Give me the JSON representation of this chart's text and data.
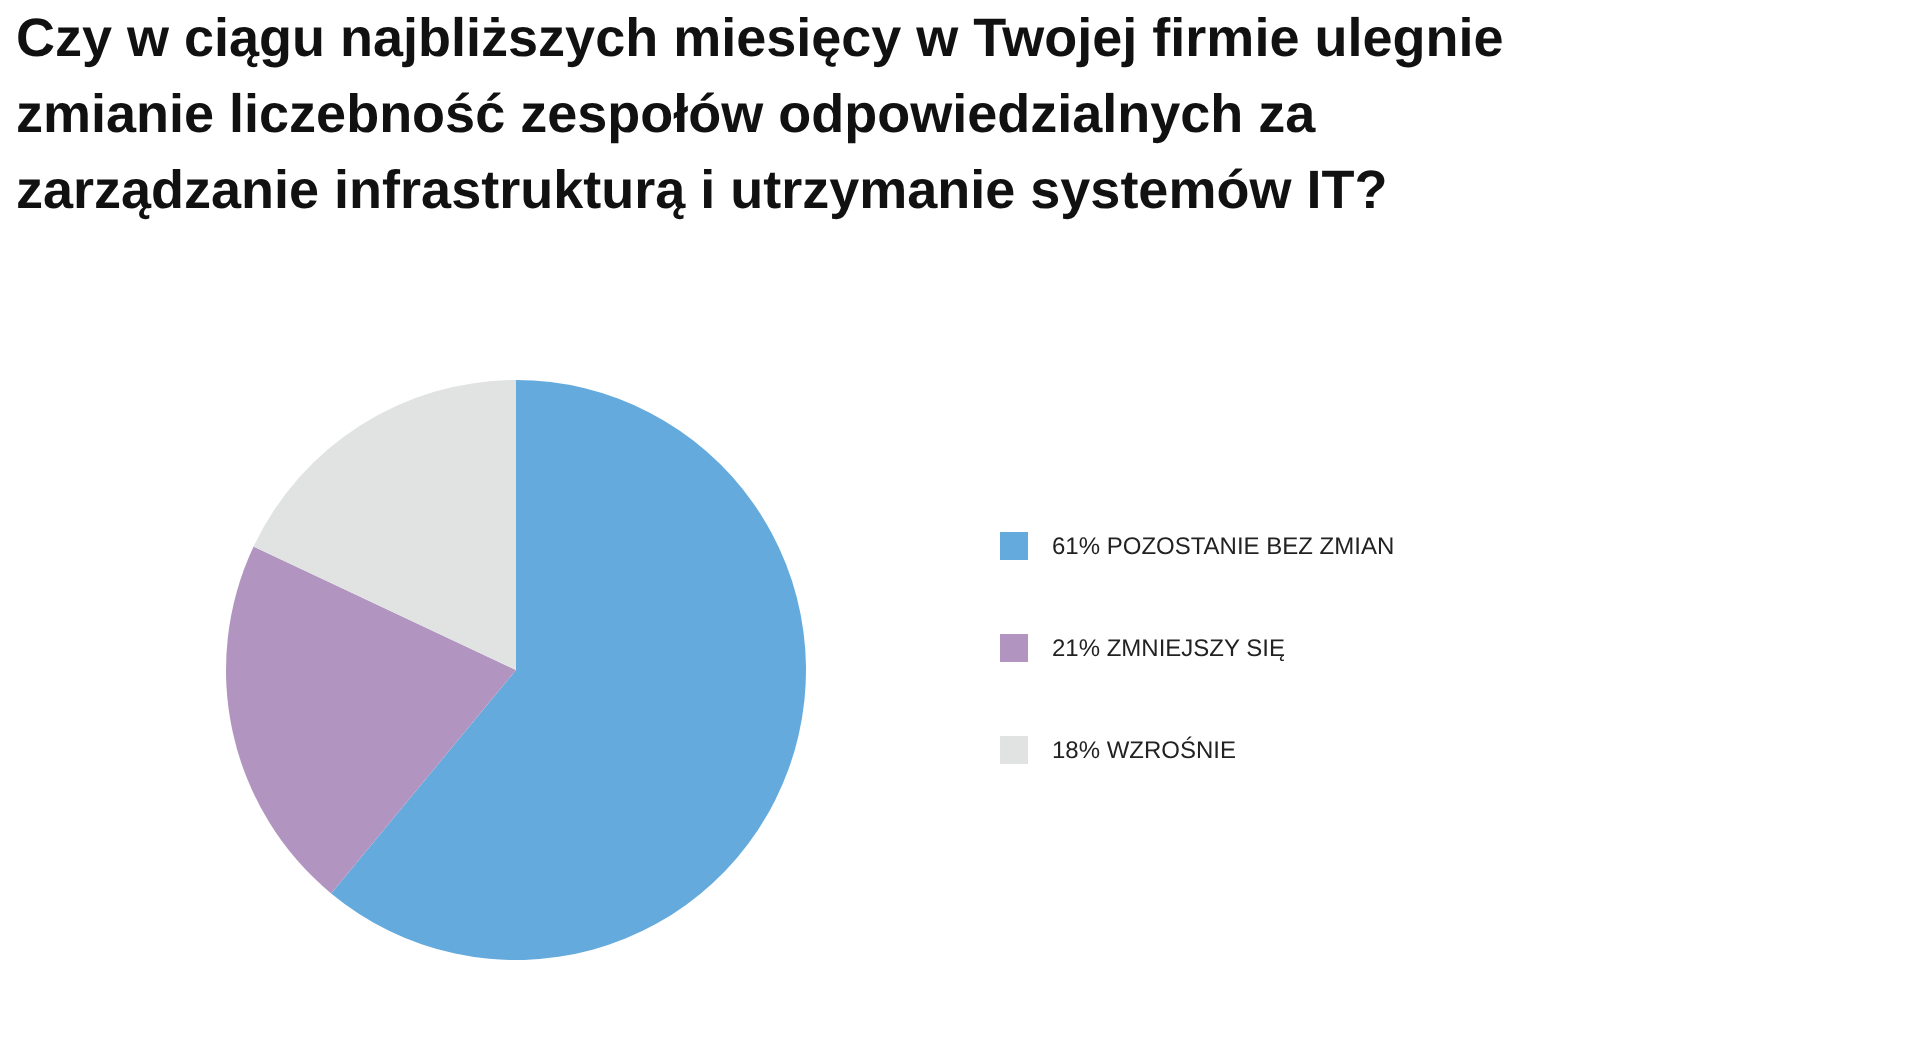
{
  "chart_data": {
    "type": "pie",
    "title": "Czy w ciągu najbliższych miesięcy w Twojej firmie ulegnie zmianie liczebność zespołów odpowiedzialnych za zarządzanie infrastrukturą i utrzymanie systemów IT?",
    "categories": [
      "POZOSTANIE BEZ ZMIAN",
      "ZMNIEJSZY SIĘ",
      "WZROŚNIE"
    ],
    "values": [
      61,
      21,
      18
    ],
    "value_labels": [
      "61%",
      "21%",
      "18%"
    ],
    "colors": [
      "#64aadd",
      "#b195c0",
      "#e1e2e2"
    ],
    "legend": "right"
  }
}
